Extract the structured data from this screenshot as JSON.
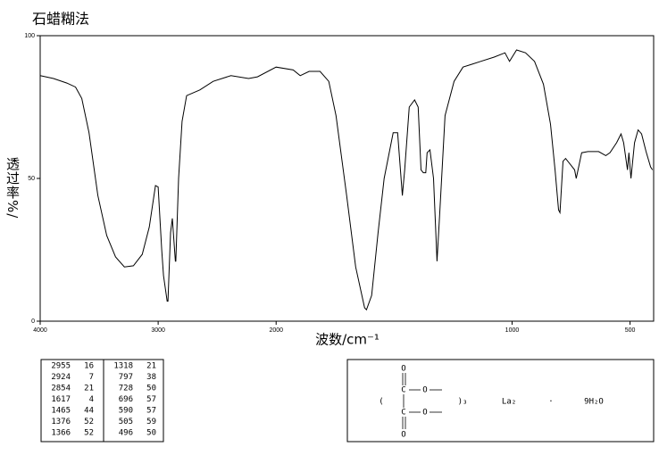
{
  "chart_data": {
    "type": "line",
    "title": "石蜡糊法",
    "xlabel": "波数/cm⁻¹",
    "ylabel": "透过率%/",
    "xlim": [
      4000,
      400
    ],
    "xticks": [
      4000,
      3000,
      2000,
      1000,
      500
    ],
    "x_scale_break": 2000,
    "x_scale_factor": 2,
    "ylim": [
      0,
      100
    ],
    "yticks": [
      0,
      50,
      100
    ],
    "color": "#000000",
    "x": [
      4000,
      3887,
      3774,
      3700,
      3647,
      3586,
      3511,
      3436,
      3361,
      3286,
      3210,
      3135,
      3075,
      3023,
      3000,
      2970,
      2955,
      2924,
      2917,
      2895,
      2880,
      2854,
      2850,
      2827,
      2797,
      2759,
      2647,
      2534,
      2383,
      2233,
      2158,
      2000,
      1928,
      1898,
      1860,
      1814,
      1777,
      1746,
      1701,
      1663,
      1625,
      1617,
      1595,
      1568,
      1542,
      1504,
      1485,
      1465,
      1455,
      1436,
      1413,
      1398,
      1386,
      1376,
      1366,
      1360,
      1348,
      1333,
      1318,
      1307,
      1284,
      1246,
      1208,
      1170,
      1133,
      1076,
      1030,
      1011,
      981,
      943,
      905,
      867,
      837,
      818,
      803,
      797,
      784,
      773,
      735,
      728,
      705,
      678,
      633,
      603,
      585,
      557,
      538,
      527,
      511,
      505,
      496,
      481,
      466,
      451,
      432,
      413,
      405
    ],
    "values": [
      86,
      85,
      83.4,
      82,
      78,
      66,
      44,
      30,
      22.5,
      19,
      19.4,
      23.4,
      33,
      47.5,
      47,
      25,
      16,
      7,
      7,
      31,
      36,
      21,
      21,
      50,
      70,
      79,
      81,
      84,
      86,
      85,
      85.6,
      89,
      88,
      86,
      87.5,
      87.5,
      84,
      72,
      44,
      19,
      4.7,
      4,
      9,
      31,
      50,
      66,
      66,
      44,
      53,
      75,
      77.5,
      75,
      53,
      52,
      52,
      59,
      60,
      50,
      21,
      37,
      72,
      84,
      89,
      90,
      91,
      92.5,
      94,
      91,
      95,
      94,
      91,
      83,
      69,
      53,
      39,
      38,
      56,
      57,
      53,
      50,
      59,
      59.4,
      59.4,
      58,
      59,
      62.5,
      65.6,
      62.5,
      53,
      59,
      50,
      62.5,
      67,
      65.6,
      59.4,
      54,
      53
    ]
  },
  "peak_table": [
    [
      2955,
      16,
      1318,
      21
    ],
    [
      2924,
      7,
      797,
      38
    ],
    [
      2854,
      21,
      728,
      50
    ],
    [
      1617,
      4,
      696,
      57
    ],
    [
      1465,
      44,
      590,
      57
    ],
    [
      1376,
      52,
      505,
      59
    ],
    [
      1366,
      52,
      496,
      50
    ]
  ],
  "structure": {
    "atoms": [
      "O",
      "C",
      "O",
      "C",
      "O",
      "O"
    ],
    "open": "(",
    "close": ")₃",
    "metal": "La₂",
    "dot": "·",
    "water": "9H₂O"
  }
}
